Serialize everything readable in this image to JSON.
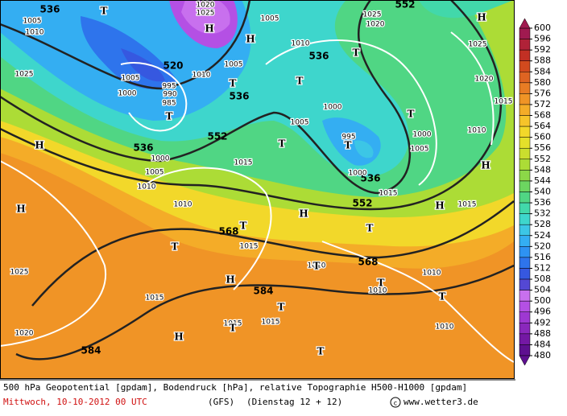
{
  "map": {
    "geopotential_labels": [
      "536",
      "520",
      "536",
      "536",
      "552",
      "536",
      "552",
      "536",
      "552",
      "568",
      "568",
      "584",
      "584"
    ],
    "pressure_labels": [
      "1005",
      "1010",
      "1025",
      "1005",
      "1000",
      "995",
      "990",
      "985",
      "1010",
      "1005",
      "1005",
      "1010",
      "1025",
      "1020",
      "1025",
      "1020",
      "1015",
      "1000",
      "1005",
      "995",
      "1000",
      "1005",
      "1010",
      "1000",
      "1015",
      "1015",
      "1000",
      "1005",
      "1010",
      "1015",
      "1010",
      "1015",
      "1010",
      "1010",
      "1010",
      "1015",
      "1025",
      "1020",
      "1015",
      "1015",
      "1010",
      "1020",
      "1025"
    ],
    "centers": [
      "H",
      "H",
      "H",
      "H",
      "H",
      "H",
      "H",
      "H",
      "H",
      "H",
      "T",
      "T",
      "T",
      "T",
      "T",
      "T",
      "T",
      "T",
      "T",
      "T",
      "T",
      "T",
      "T",
      "T",
      "T",
      "T",
      "T"
    ]
  },
  "colorbar": {
    "ticks": [
      600,
      596,
      592,
      588,
      584,
      580,
      576,
      572,
      568,
      564,
      560,
      556,
      552,
      548,
      544,
      540,
      536,
      532,
      528,
      524,
      520,
      516,
      512,
      508,
      504,
      500,
      496,
      492,
      488,
      484,
      480
    ],
    "colors": [
      "#a01a50",
      "#b02238",
      "#c23024",
      "#d24a1e",
      "#de6422",
      "#e87c24",
      "#f09426",
      "#f4ac28",
      "#f6c42a",
      "#f2d82a",
      "#e4e02a",
      "#cade2e",
      "#acdc36",
      "#8cd848",
      "#6cd660",
      "#50d684",
      "#42d8aa",
      "#3ed6cc",
      "#3cc6e6",
      "#34aef2",
      "#2e92f2",
      "#2e74ec",
      "#3658e0",
      "#5448d4",
      "#c870ee",
      "#b450e4",
      "#9e38d2",
      "#8a28bc",
      "#7418a4",
      "#5e1090"
    ]
  },
  "footer": {
    "line1": "500 hPa Geopotential [gpdam], Bodendruck [hPa], relative Topographie H500-H1000 [gpdam]",
    "date": "Mittwoch, 10-10-2012  00 UTC",
    "model": "(GFS)",
    "run": "(Dienstag 12 + 12)",
    "site": "www.wetter3.de"
  }
}
